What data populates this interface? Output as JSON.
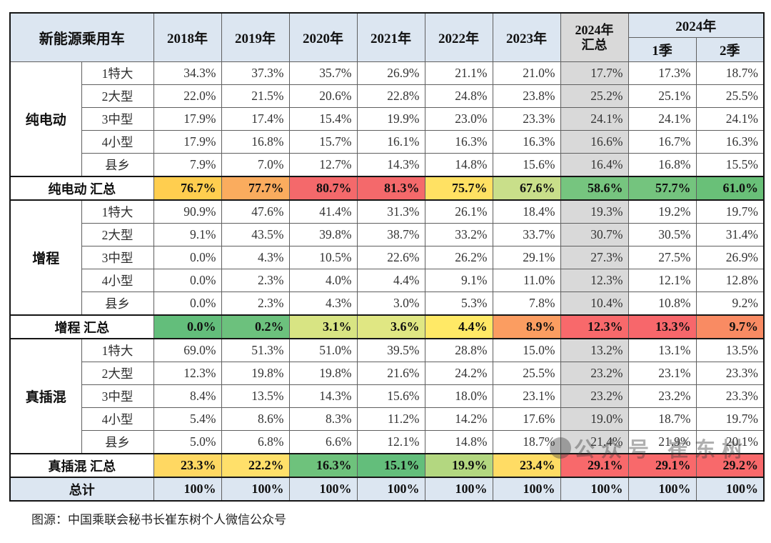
{
  "page": {
    "caption": "图源：中国乘联会秘书长崔东树个人微信公众号",
    "watermark_text": "公众号 崔东树"
  },
  "colors": {
    "header_bg": "#DCE6F1",
    "summary_column_bg": "#D9D9D9",
    "total_row_bg": "#DCE6F1",
    "scale_green": "#63BE7B",
    "scale_yellow": "#FFEB84",
    "scale_red": "#F8696B"
  },
  "chart_data": {
    "type": "table",
    "title": "新能源乘用车",
    "corner_label": "新能源乘用车",
    "year_headers": [
      "2018年",
      "2019年",
      "2020年",
      "2021年",
      "2022年",
      "2023年"
    ],
    "summary_header": [
      "2024年",
      "汇总"
    ],
    "quarter_group_header": "2024年",
    "quarter_headers": [
      "1季",
      "2季"
    ],
    "columns": [
      "2018年",
      "2019年",
      "2020年",
      "2021年",
      "2022年",
      "2023年",
      "2024年汇总",
      "2024年1季",
      "2024年2季"
    ],
    "groups": [
      {
        "name": "纯电动",
        "rows": [
          {
            "label": "1特大",
            "values": [
              "34.3%",
              "37.3%",
              "35.7%",
              "26.9%",
              "21.1%",
              "21.0%",
              "17.7%",
              "17.3%",
              "18.7%"
            ]
          },
          {
            "label": "2大型",
            "values": [
              "22.0%",
              "21.5%",
              "20.6%",
              "22.8%",
              "24.8%",
              "23.8%",
              "25.2%",
              "25.1%",
              "25.5%"
            ]
          },
          {
            "label": "3中型",
            "values": [
              "17.9%",
              "17.4%",
              "15.4%",
              "19.9%",
              "23.0%",
              "23.3%",
              "24.1%",
              "24.1%",
              "24.1%"
            ]
          },
          {
            "label": "4小型",
            "values": [
              "17.9%",
              "16.8%",
              "15.7%",
              "16.1%",
              "16.3%",
              "16.3%",
              "16.6%",
              "16.7%",
              "16.3%"
            ]
          },
          {
            "label": "县乡",
            "values": [
              "7.9%",
              "7.0%",
              "12.7%",
              "14.3%",
              "14.8%",
              "15.6%",
              "16.4%",
              "16.8%",
              "15.5%"
            ]
          }
        ],
        "summary": {
          "label": "纯电动 汇总",
          "values": [
            "76.7%",
            "77.7%",
            "80.7%",
            "81.3%",
            "75.7%",
            "67.6%",
            "58.6%",
            "57.7%",
            "61.0%"
          ],
          "colors": [
            "#FFCE4F",
            "#FAAC5E",
            "#F4696B",
            "#F4696B",
            "#FFE163",
            "#C9DF8A",
            "#76C57F",
            "#74C47E",
            "#69C078"
          ]
        }
      },
      {
        "name": "增程",
        "rows": [
          {
            "label": "1特大",
            "values": [
              "90.9%",
              "47.6%",
              "41.4%",
              "31.3%",
              "26.1%",
              "18.4%",
              "19.3%",
              "19.2%",
              "19.7%"
            ]
          },
          {
            "label": "2大型",
            "values": [
              "9.1%",
              "43.5%",
              "39.8%",
              "38.7%",
              "33.2%",
              "33.7%",
              "30.7%",
              "30.5%",
              "31.4%"
            ]
          },
          {
            "label": "3中型",
            "values": [
              "0.0%",
              "4.3%",
              "10.5%",
              "22.6%",
              "26.2%",
              "29.1%",
              "27.3%",
              "27.5%",
              "26.9%"
            ]
          },
          {
            "label": "4小型",
            "values": [
              "0.0%",
              "2.3%",
              "4.0%",
              "4.4%",
              "9.1%",
              "11.0%",
              "12.3%",
              "12.1%",
              "12.8%"
            ]
          },
          {
            "label": "县乡",
            "values": [
              "0.0%",
              "2.3%",
              "4.3%",
              "3.0%",
              "5.3%",
              "7.8%",
              "10.4%",
              "10.8%",
              "9.2%"
            ]
          }
        ],
        "summary": {
          "label": "增程 汇总",
          "values": [
            "0.0%",
            "0.2%",
            "3.1%",
            "3.6%",
            "4.4%",
            "8.9%",
            "12.3%",
            "13.3%",
            "9.7%"
          ],
          "colors": [
            "#63BE7B",
            "#6CC17D",
            "#D8E483",
            "#E0E783",
            "#FFE966",
            "#FB9D61",
            "#F8696B",
            "#F7676B",
            "#F98B63"
          ]
        }
      },
      {
        "name": "真插混",
        "rows": [
          {
            "label": "1特大",
            "values": [
              "69.0%",
              "51.3%",
              "51.0%",
              "39.5%",
              "28.8%",
              "15.0%",
              "13.2%",
              "13.1%",
              "13.5%"
            ]
          },
          {
            "label": "2大型",
            "values": [
              "12.3%",
              "19.8%",
              "19.8%",
              "21.6%",
              "24.2%",
              "25.5%",
              "23.2%",
              "23.1%",
              "23.3%"
            ]
          },
          {
            "label": "3中型",
            "values": [
              "8.4%",
              "13.5%",
              "14.3%",
              "15.6%",
              "18.0%",
              "23.1%",
              "23.2%",
              "23.2%",
              "23.3%"
            ]
          },
          {
            "label": "4小型",
            "values": [
              "5.4%",
              "8.6%",
              "8.3%",
              "11.2%",
              "14.2%",
              "17.6%",
              "19.0%",
              "18.7%",
              "19.7%"
            ]
          },
          {
            "label": "县乡",
            "values": [
              "5.0%",
              "6.8%",
              "6.6%",
              "12.1%",
              "14.8%",
              "18.7%",
              "21.4%",
              "21.9%",
              "20.1%"
            ]
          }
        ],
        "summary": {
          "label": "真插混 汇总",
          "values": [
            "23.3%",
            "22.2%",
            "16.3%",
            "15.1%",
            "19.9%",
            "23.4%",
            "29.1%",
            "29.1%",
            "29.2%"
          ],
          "colors": [
            "#FFD862",
            "#FFE06A",
            "#6EC27C",
            "#63BE7B",
            "#B3D780",
            "#FFDC64",
            "#F8696B",
            "#F8696B",
            "#F8696B"
          ]
        }
      }
    ],
    "total": {
      "label": "总计",
      "values": [
        "100%",
        "100%",
        "100%",
        "100%",
        "100%",
        "100%",
        "100%",
        "100%",
        "100%"
      ]
    }
  }
}
